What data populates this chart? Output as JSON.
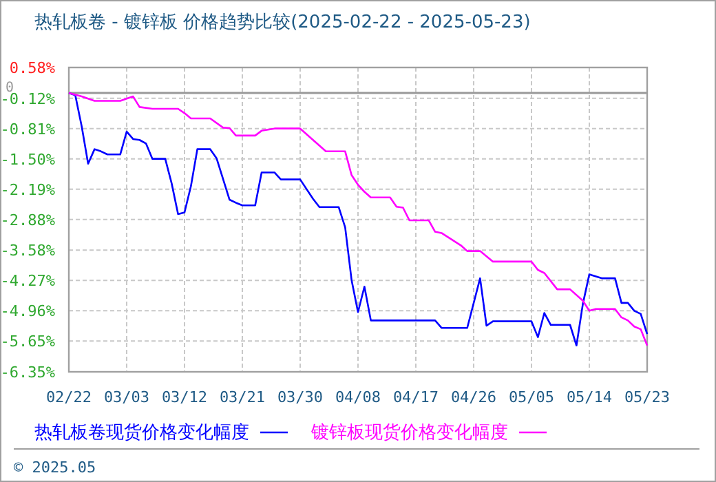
{
  "chart_data": {
    "type": "line",
    "title": "热轧板卷 - 镀锌板 价格趋势比较(2025-02-22 - 2025-05-23)",
    "xlim": [
      "2025-02-22",
      "2025-05-23"
    ],
    "xticks": [
      {
        "value": "2025-02-22",
        "label": "02/22"
      },
      {
        "value": "2025-03-03",
        "label": "03/03"
      },
      {
        "value": "2025-03-12",
        "label": "03/12"
      },
      {
        "value": "2025-03-21",
        "label": "03/21"
      },
      {
        "value": "2025-03-30",
        "label": "03/30"
      },
      {
        "value": "2025-04-08",
        "label": "04/08"
      },
      {
        "value": "2025-04-17",
        "label": "04/17"
      },
      {
        "value": "2025-04-26",
        "label": "04/26"
      },
      {
        "value": "2025-05-05",
        "label": "05/05"
      },
      {
        "value": "2025-05-14",
        "label": "05/14"
      },
      {
        "value": "2025-05-23",
        "label": "05/23"
      }
    ],
    "ylim": [
      -6.35,
      0.58
    ],
    "yticks": [
      {
        "value": 0.58,
        "label": "0.58%"
      },
      {
        "value": -0.12,
        "label": "-0.12%"
      },
      {
        "value": -0.81,
        "label": "-0.81%"
      },
      {
        "value": -1.5,
        "label": "-1.50%"
      },
      {
        "value": -2.19,
        "label": "-2.19%"
      },
      {
        "value": -2.88,
        "label": "-2.88%"
      },
      {
        "value": -3.58,
        "label": "-3.58%"
      },
      {
        "value": -4.27,
        "label": "-4.27%"
      },
      {
        "value": -4.96,
        "label": "-4.96%"
      },
      {
        "value": -5.65,
        "label": "-5.65%"
      },
      {
        "value": -6.35,
        "label": "-6.35%"
      }
    ],
    "ref_lines": [
      {
        "axis": "y",
        "value": 0,
        "label": "0",
        "color": "#999999"
      }
    ],
    "grid": true,
    "legend": "bottom",
    "marker": "none",
    "line_style": "solid",
    "series": [
      {
        "name": "热轧板卷现货价格变化幅度",
        "color": "#0000ff",
        "x": [
          "2025-02-22",
          "2025-02-23",
          "2025-02-24",
          "2025-02-25",
          "2025-02-26",
          "2025-02-27",
          "2025-02-28",
          "2025-03-02",
          "2025-03-03",
          "2025-03-04",
          "2025-03-05",
          "2025-03-06",
          "2025-03-07",
          "2025-03-09",
          "2025-03-10",
          "2025-03-11",
          "2025-03-12",
          "2025-03-13",
          "2025-03-14",
          "2025-03-16",
          "2025-03-17",
          "2025-03-19",
          "2025-03-20",
          "2025-03-21",
          "2025-03-23",
          "2025-03-24",
          "2025-03-26",
          "2025-03-27",
          "2025-03-30",
          "2025-04-01",
          "2025-04-02",
          "2025-04-05",
          "2025-04-06",
          "2025-04-07",
          "2025-04-08",
          "2025-04-09",
          "2025-04-10",
          "2025-04-20",
          "2025-04-21",
          "2025-04-25",
          "2025-04-27",
          "2025-04-28",
          "2025-04-29",
          "2025-05-05",
          "2025-05-06",
          "2025-05-07",
          "2025-05-08",
          "2025-05-11",
          "2025-05-12",
          "2025-05-13",
          "2025-05-14",
          "2025-05-16",
          "2025-05-18",
          "2025-05-19",
          "2025-05-20",
          "2025-05-21",
          "2025-05-22",
          "2025-05-23"
        ],
        "values": [
          0,
          -0.05,
          -0.76,
          -1.61,
          -1.28,
          -1.33,
          -1.4,
          -1.4,
          -0.88,
          -1.05,
          -1.07,
          -1.15,
          -1.5,
          -1.5,
          -2.06,
          -2.76,
          -2.72,
          -2.12,
          -1.28,
          -1.28,
          -1.49,
          -2.43,
          -2.5,
          -2.56,
          -2.56,
          -1.81,
          -1.81,
          -1.97,
          -1.97,
          -2.41,
          -2.6,
          -2.6,
          -3.06,
          -4.26,
          -4.99,
          -4.41,
          -5.18,
          -5.18,
          -5.35,
          -5.35,
          -4.22,
          -5.3,
          -5.2,
          -5.2,
          -5.56,
          -5.01,
          -5.28,
          -5.28,
          -5.75,
          -4.8,
          -4.13,
          -4.22,
          -4.22,
          -4.78,
          -4.78,
          -4.96,
          -5.03,
          -5.49
        ]
      },
      {
        "name": "镀锌板现货价格变化幅度",
        "color": "#ff00ff",
        "x": [
          "2025-02-22",
          "2025-02-24",
          "2025-02-26",
          "2025-03-02",
          "2025-03-04",
          "2025-03-05",
          "2025-03-07",
          "2025-03-11",
          "2025-03-12",
          "2025-03-13",
          "2025-03-16",
          "2025-03-18",
          "2025-03-19",
          "2025-03-20",
          "2025-03-23",
          "2025-03-24",
          "2025-03-26",
          "2025-03-30",
          "2025-04-01",
          "2025-04-03",
          "2025-04-06",
          "2025-04-07",
          "2025-04-08",
          "2025-04-09",
          "2025-04-10",
          "2025-04-13",
          "2025-04-14",
          "2025-04-15",
          "2025-04-16",
          "2025-04-19",
          "2025-04-20",
          "2025-04-21",
          "2025-04-24",
          "2025-04-25",
          "2025-04-27",
          "2025-04-29",
          "2025-05-05",
          "2025-05-06",
          "2025-05-07",
          "2025-05-09",
          "2025-05-11",
          "2025-05-13",
          "2025-05-14",
          "2025-05-15",
          "2025-05-18",
          "2025-05-19",
          "2025-05-20",
          "2025-05-21",
          "2025-05-22",
          "2025-05-23"
        ],
        "values": [
          0,
          -0.08,
          -0.18,
          -0.18,
          -0.08,
          -0.32,
          -0.36,
          -0.36,
          -0.46,
          -0.58,
          -0.58,
          -0.79,
          -0.8,
          -0.97,
          -0.97,
          -0.86,
          -0.81,
          -0.81,
          -1.07,
          -1.33,
          -1.33,
          -1.87,
          -2.09,
          -2.25,
          -2.38,
          -2.38,
          -2.59,
          -2.61,
          -2.9,
          -2.9,
          -3.16,
          -3.19,
          -3.47,
          -3.6,
          -3.6,
          -3.84,
          -3.84,
          -4.03,
          -4.1,
          -4.47,
          -4.47,
          -4.73,
          -4.96,
          -4.92,
          -4.92,
          -5.11,
          -5.18,
          -5.32,
          -5.38,
          -5.75
        ]
      }
    ],
    "annotations": [
      "© 2025.05"
    ]
  }
}
